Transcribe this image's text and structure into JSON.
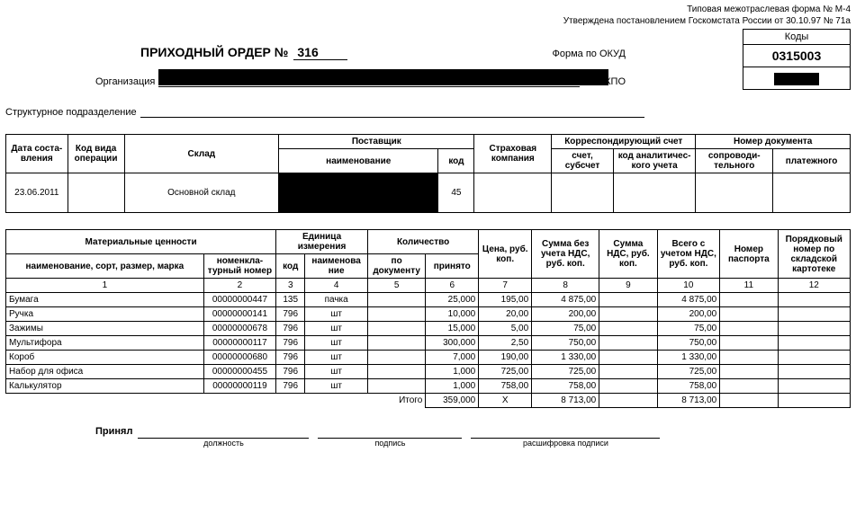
{
  "header": {
    "form_line": "Типовая межотраслевая форма № М-4",
    "approved_line": "Утверждена постановлением Госкомстата России от 30.10.97 № 71а",
    "codes_label": "Коды",
    "okud_code": "0315003",
    "okpo_code": "",
    "title": "ПРИХОДНЫЙ ОРДЕР №",
    "order_no": "316",
    "okud_label": "Форма по ОКУД",
    "org_label": "Организация",
    "okpo_label": "по ОКПО",
    "subdiv_label": "Структурное подразделение"
  },
  "table1": {
    "h_date": "Дата соста-\nвления",
    "h_opcode": "Код вида операции",
    "h_store": "Склад",
    "h_supplier": "Поставщик",
    "h_supplier_name": "наименование",
    "h_supplier_code": "код",
    "h_insurance": "Страховая компания",
    "h_corr": "Корреспондирующий счет",
    "h_corr_acct": "счет, субсчет",
    "h_corr_anal": "код аналитичес-\nкого учета",
    "h_docno": "Номер документа",
    "h_docno_acc": "сопроводи-\nтельного",
    "h_docno_pay": "платежного",
    "r_date": "23.06.2011",
    "r_store": "Основной склад",
    "r_supcode": "45"
  },
  "table2": {
    "h_matc": "Материальные ценности",
    "h_name": "наименование, сорт, размер, марка",
    "h_nomno": "номенкла-\nтурный номер",
    "h_unit": "Единица измерения",
    "h_unit_code": "код",
    "h_unit_name": "наименова\nние",
    "h_qty": "Количество",
    "h_qty_doc": "по документу",
    "h_qty_acc": "принято",
    "h_price": "Цена, руб. коп.",
    "h_sum_novat": "Сумма без учета НДС,\nруб. коп.",
    "h_vat": "Сумма НДС, руб. коп.",
    "h_total": "Всего с учетом НДС, руб. коп.",
    "h_passport": "Номер паспорта",
    "h_cardno": "Порядковый номер по складской картотеке",
    "colnums": [
      "1",
      "2",
      "3",
      "4",
      "5",
      "6",
      "7",
      "8",
      "9",
      "10",
      "11",
      "12"
    ],
    "rows": [
      {
        "name": "Бумага",
        "nom": "00000000447",
        "ucode": "135",
        "uname": "пачка",
        "qacc": "25,000",
        "price": "195,00",
        "sum": "4 875,00",
        "total": "4 875,00"
      },
      {
        "name": "Ручка",
        "nom": "00000000141",
        "ucode": "796",
        "uname": "шт",
        "qacc": "10,000",
        "price": "20,00",
        "sum": "200,00",
        "total": "200,00"
      },
      {
        "name": "Зажимы",
        "nom": "00000000678",
        "ucode": "796",
        "uname": "шт",
        "qacc": "15,000",
        "price": "5,00",
        "sum": "75,00",
        "total": "75,00"
      },
      {
        "name": "Мультифора",
        "nom": "00000000117",
        "ucode": "796",
        "uname": "шт",
        "qacc": "300,000",
        "price": "2,50",
        "sum": "750,00",
        "total": "750,00"
      },
      {
        "name": "Короб",
        "nom": "00000000680",
        "ucode": "796",
        "uname": "шт",
        "qacc": "7,000",
        "price": "190,00",
        "sum": "1 330,00",
        "total": "1 330,00"
      },
      {
        "name": "Набор для офиса",
        "nom": "00000000455",
        "ucode": "796",
        "uname": "шт",
        "qacc": "1,000",
        "price": "725,00",
        "sum": "725,00",
        "total": "725,00"
      },
      {
        "name": "Калькулятор",
        "nom": "00000000119",
        "ucode": "796",
        "uname": "шт",
        "qacc": "1,000",
        "price": "758,00",
        "sum": "758,00",
        "total": "758,00"
      }
    ],
    "total_label": "Итого",
    "total_qty": "359,000",
    "total_price": "Х",
    "total_sum": "8 713,00",
    "total_all": "8 713,00"
  },
  "sign": {
    "accepted": "Принял",
    "cap_post": "должность",
    "cap_sign": "подпись",
    "cap_name": "расшифровка подписи"
  },
  "colors": {
    "border": "#000000",
    "bg": "#ffffff",
    "text": "#000000",
    "redaction": "#000000"
  }
}
